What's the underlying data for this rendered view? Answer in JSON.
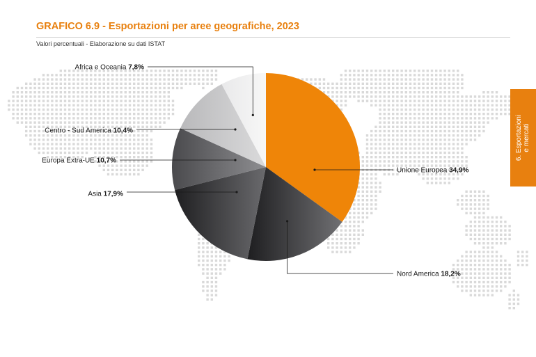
{
  "header": {
    "title": "GRAFICO 6.9 - Esportazioni per aree geografiche, 2023",
    "subtitle": "Valori percentuali -  Elaborazione su dati ISTAT"
  },
  "side_tab": {
    "line1": "6. Esportazioni",
    "line2": "e mercati"
  },
  "colors": {
    "accent": "#e8800f",
    "text": "#1a1a1a",
    "map_dots": "#d9d9d9"
  },
  "chart_data": {
    "type": "pie",
    "title": "GRAFICO 6.9 - Esportazioni per aree geografiche, 2023",
    "subtitle": "Valori percentuali -  Elaborazione su dati ISTAT",
    "slices": [
      {
        "label": "Unione Europea",
        "value": 34.9,
        "value_text": "34,9%",
        "color": "#ef8508"
      },
      {
        "label": "Nord America",
        "value": 18.2,
        "value_text": "18,2%",
        "color": "#3b3b3e"
      },
      {
        "label": "Asia",
        "value": 17.9,
        "value_text": "17,9%",
        "color": "#4a4a4d"
      },
      {
        "label": "Europa Extra-UE",
        "value": 10.7,
        "value_text": "10,7%",
        "color": "#6f6f72"
      },
      {
        "label": "Centro - Sud America",
        "value": 10.4,
        "value_text": "10,4%",
        "color": "#c4c4c6"
      },
      {
        "label": "Africa e Oceania",
        "value": 7.8,
        "value_text": "7,8%",
        "color": "#f0f0f0"
      }
    ],
    "start_angle": "12 o'clock",
    "direction": "clockwise",
    "labels": "outside with leader lines"
  }
}
